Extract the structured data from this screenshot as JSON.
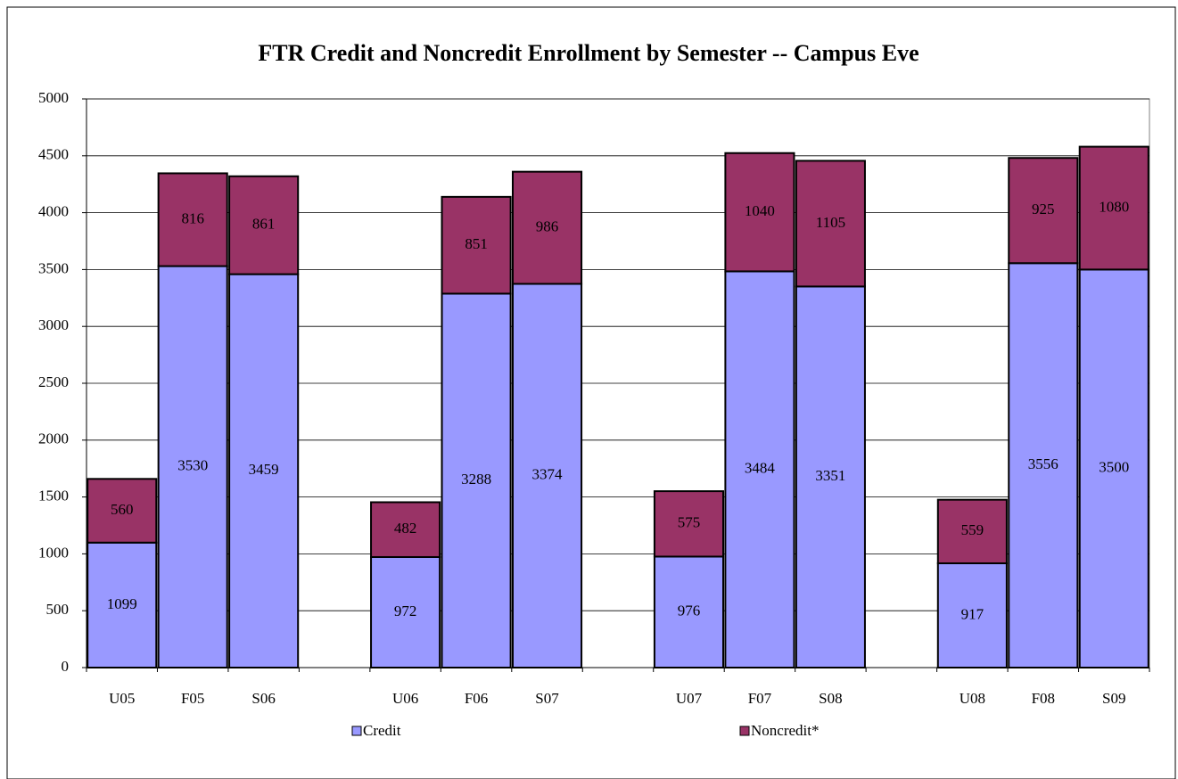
{
  "chart_data": {
    "type": "stacked_bar",
    "title": "FTR Credit and Noncredit Enrollment by Semester -- Campus Eve",
    "categories": [
      "U05",
      "F05",
      "S06",
      null,
      "U06",
      "F06",
      "S07",
      null,
      "U07",
      "F07",
      "S08",
      null,
      "U08",
      "F08",
      "S09"
    ],
    "series": [
      {
        "name": "Credit",
        "color": "#9999ff",
        "values": [
          1099,
          3530,
          3459,
          null,
          972,
          3288,
          3374,
          null,
          976,
          3484,
          3351,
          null,
          917,
          3556,
          3500
        ]
      },
      {
        "name": "Noncredit*",
        "color": "#993366",
        "values": [
          560,
          816,
          861,
          null,
          482,
          851,
          986,
          null,
          575,
          1040,
          1105,
          null,
          559,
          925,
          1080
        ]
      }
    ],
    "ylim": [
      0,
      5000
    ],
    "yticks": [
      0,
      500,
      1000,
      1500,
      2000,
      2500,
      3000,
      3500,
      4000,
      4500,
      5000
    ],
    "grid": true,
    "legend": "bottom"
  }
}
